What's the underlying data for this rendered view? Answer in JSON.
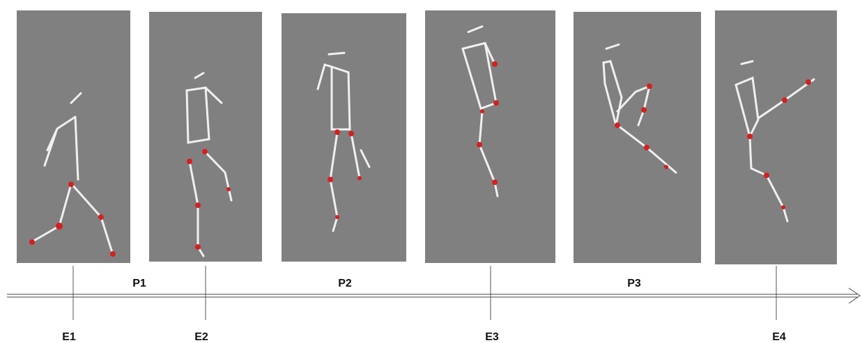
{
  "phases": [
    "P1",
    "P2",
    "P3"
  ],
  "events": [
    "E1",
    "E2",
    "E3",
    "E4"
  ]
}
